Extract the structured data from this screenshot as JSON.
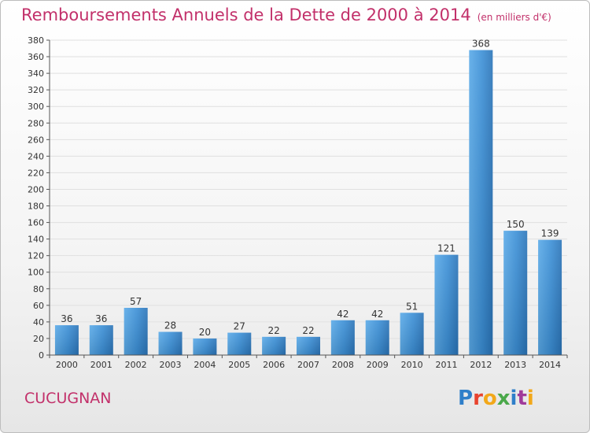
{
  "chart_data": {
    "type": "bar",
    "title": "Remboursements Annuels de la Dette de 2000 à 2014",
    "unit": "(en milliers d'€)",
    "categories": [
      "2000",
      "2001",
      "2002",
      "2003",
      "2004",
      "2005",
      "2006",
      "2007",
      "2008",
      "2009",
      "2010",
      "2011",
      "2012",
      "2013",
      "2014"
    ],
    "values": [
      36,
      36,
      57,
      28,
      20,
      27,
      22,
      22,
      42,
      42,
      51,
      121,
      368,
      150,
      139
    ],
    "ylim": [
      0,
      380
    ],
    "ytick_step": 20,
    "grid": true,
    "bar_color": "#3b8fd6"
  },
  "commune": "CUCUGNAN",
  "logo": {
    "text": "Proxiti",
    "letters": [
      "P",
      "r",
      "o",
      "x",
      "i",
      "t",
      "i"
    ]
  }
}
